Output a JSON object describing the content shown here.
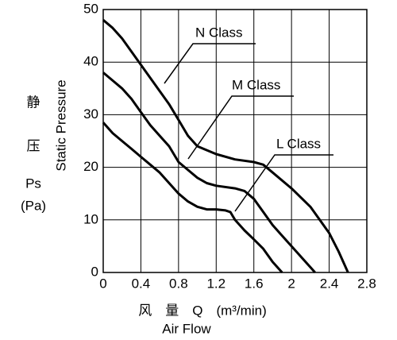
{
  "chart_data": {
    "type": "line",
    "xlabel": "风　量　Q　(m³/min)",
    "xlabel_sub": "Air Flow",
    "ylabel": "Static Pressure",
    "y_side_labels": [
      "静",
      "压",
      "Ps",
      "(Pa)"
    ],
    "xlim": [
      0,
      2.8
    ],
    "xticks": [
      0,
      0.4,
      0.8,
      1.2,
      1.6,
      2.0,
      2.4,
      2.8
    ],
    "ylim": [
      0,
      50
    ],
    "yticks": [
      0,
      10,
      20,
      30,
      40,
      50
    ],
    "grid": true,
    "series": [
      {
        "name": "N Class",
        "color": "#000000",
        "x": [
          0,
          0.1,
          0.2,
          0.3,
          0.4,
          0.5,
          0.6,
          0.7,
          0.8,
          0.9,
          1.0,
          1.2,
          1.4,
          1.6,
          1.7,
          1.8,
          2.0,
          2.2,
          2.4,
          2.5,
          2.6
        ],
        "values": [
          48,
          46.5,
          44.5,
          42,
          39.5,
          37,
          34.5,
          32,
          29,
          26,
          24,
          22.5,
          21.5,
          21,
          20.5,
          19,
          16,
          12.5,
          7.5,
          4,
          0
        ]
      },
      {
        "name": "M Class",
        "color": "#000000",
        "x": [
          0,
          0.1,
          0.2,
          0.3,
          0.4,
          0.5,
          0.6,
          0.7,
          0.8,
          0.9,
          1.0,
          1.1,
          1.2,
          1.4,
          1.5,
          1.6,
          1.7,
          1.8,
          1.9,
          2.0,
          2.1,
          2.2,
          2.25
        ],
        "values": [
          38,
          36.5,
          35,
          33,
          30.5,
          28,
          26,
          24,
          21,
          19.5,
          18,
          17,
          16.5,
          16,
          15.5,
          14,
          11.5,
          9,
          7,
          5,
          3,
          1,
          0
        ]
      },
      {
        "name": "L Class",
        "color": "#000000",
        "x": [
          0,
          0.1,
          0.2,
          0.3,
          0.4,
          0.5,
          0.6,
          0.7,
          0.8,
          0.9,
          1.0,
          1.1,
          1.2,
          1.3,
          1.35,
          1.4,
          1.5,
          1.6,
          1.7,
          1.8,
          1.9
        ],
        "values": [
          28.5,
          26.5,
          25,
          23.5,
          22,
          20.5,
          19,
          17,
          15,
          13.5,
          12.5,
          12,
          12,
          11.8,
          11.5,
          10,
          8,
          6.3,
          4.5,
          2,
          0
        ]
      }
    ]
  }
}
